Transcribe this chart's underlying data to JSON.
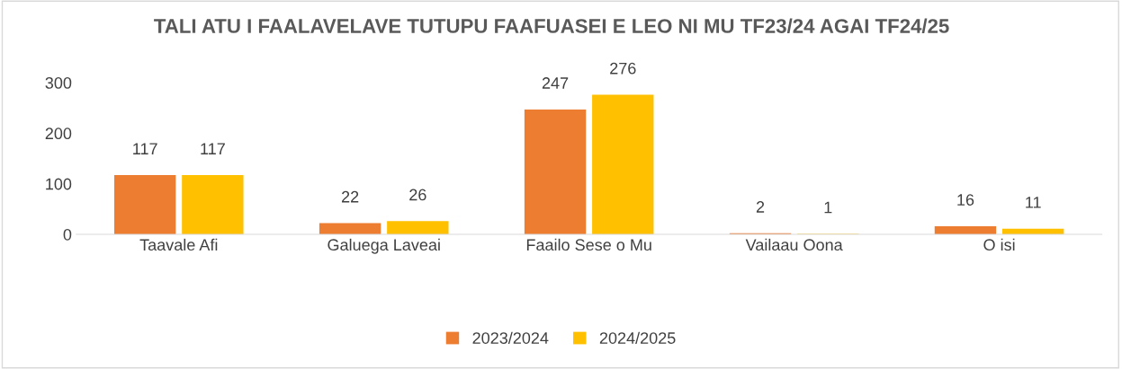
{
  "chart_data": {
    "type": "bar",
    "title": "TALI ATU I FAALAVELAVE TUTUPU FAAFUASEI E LEO NI MU TF23/24 AGAI TF24/25",
    "categories": [
      "Taavale Afi",
      "Galuega Laveai",
      "Faailo Sese o Mu",
      "Vailaau Oona",
      "O isi"
    ],
    "series": [
      {
        "name": "2023/2024",
        "color": "#ed7d31",
        "values": [
          117,
          22,
          247,
          2,
          16
        ]
      },
      {
        "name": "2024/2025",
        "color": "#ffc000",
        "values": [
          117,
          26,
          276,
          1,
          11
        ]
      }
    ],
    "ylim": [
      0,
      300
    ],
    "yticks": [
      0,
      100,
      200,
      300
    ],
    "data_labels": true,
    "legend": "bottom",
    "grid": false
  }
}
